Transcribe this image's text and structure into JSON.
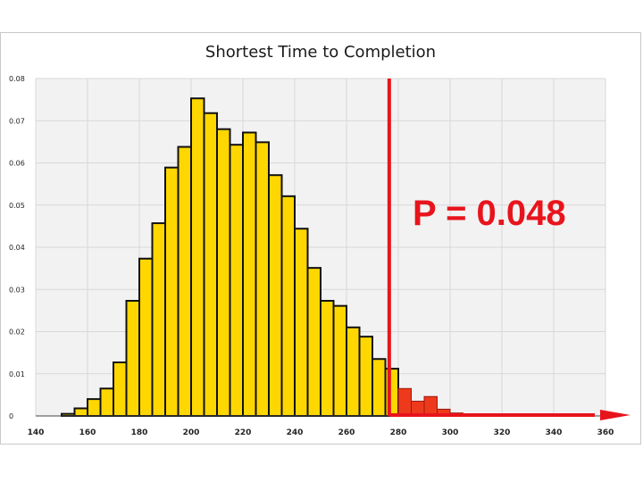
{
  "chart_data": {
    "type": "bar",
    "title": "Shortest Time to Completion",
    "xlabel": "",
    "ylabel": "",
    "xlim": [
      140,
      360
    ],
    "ylim": [
      0,
      0.08
    ],
    "x_ticks": [
      "140",
      "160",
      "180",
      "200",
      "220",
      "240",
      "260",
      "280",
      "300",
      "320",
      "340",
      "360"
    ],
    "y_ticks": [
      "0",
      "0.01",
      "0.02",
      "0.03",
      "0.04",
      "0.05",
      "0.06",
      "0.07",
      "0.08"
    ],
    "bin_width": 5,
    "bins": [
      {
        "x": 150,
        "value": 0.0005
      },
      {
        "x": 155,
        "value": 0.0018
      },
      {
        "x": 160,
        "value": 0.004
      },
      {
        "x": 165,
        "value": 0.0065
      },
      {
        "x": 170,
        "value": 0.0127
      },
      {
        "x": 175,
        "value": 0.0273
      },
      {
        "x": 180,
        "value": 0.0373
      },
      {
        "x": 185,
        "value": 0.0457
      },
      {
        "x": 190,
        "value": 0.0589
      },
      {
        "x": 195,
        "value": 0.0638
      },
      {
        "x": 200,
        "value": 0.0753
      },
      {
        "x": 205,
        "value": 0.0718
      },
      {
        "x": 210,
        "value": 0.068
      },
      {
        "x": 215,
        "value": 0.0643
      },
      {
        "x": 220,
        "value": 0.0672
      },
      {
        "x": 225,
        "value": 0.0649
      },
      {
        "x": 230,
        "value": 0.0571
      },
      {
        "x": 235,
        "value": 0.0521
      },
      {
        "x": 240,
        "value": 0.0444
      },
      {
        "x": 245,
        "value": 0.0351
      },
      {
        "x": 250,
        "value": 0.0273
      },
      {
        "x": 255,
        "value": 0.0261
      },
      {
        "x": 260,
        "value": 0.021
      },
      {
        "x": 265,
        "value": 0.0188
      },
      {
        "x": 270,
        "value": 0.0135
      },
      {
        "x": 275,
        "value": 0.0112
      },
      {
        "x": 280,
        "value": 0.0065
      },
      {
        "x": 285,
        "value": 0.0035
      },
      {
        "x": 290,
        "value": 0.0046
      },
      {
        "x": 295,
        "value": 0.0016
      },
      {
        "x": 300,
        "value": 0.0007
      }
    ],
    "threshold_x": 276.5,
    "annotation": "P = 0.048",
    "colors": {
      "below_threshold": "#ffd700",
      "above_threshold": "#ee3a1c",
      "marker": "#e8141c",
      "plot_background": "#f2f2f2",
      "grid": "#d8d8d8"
    },
    "grid": true,
    "legend": "none"
  }
}
